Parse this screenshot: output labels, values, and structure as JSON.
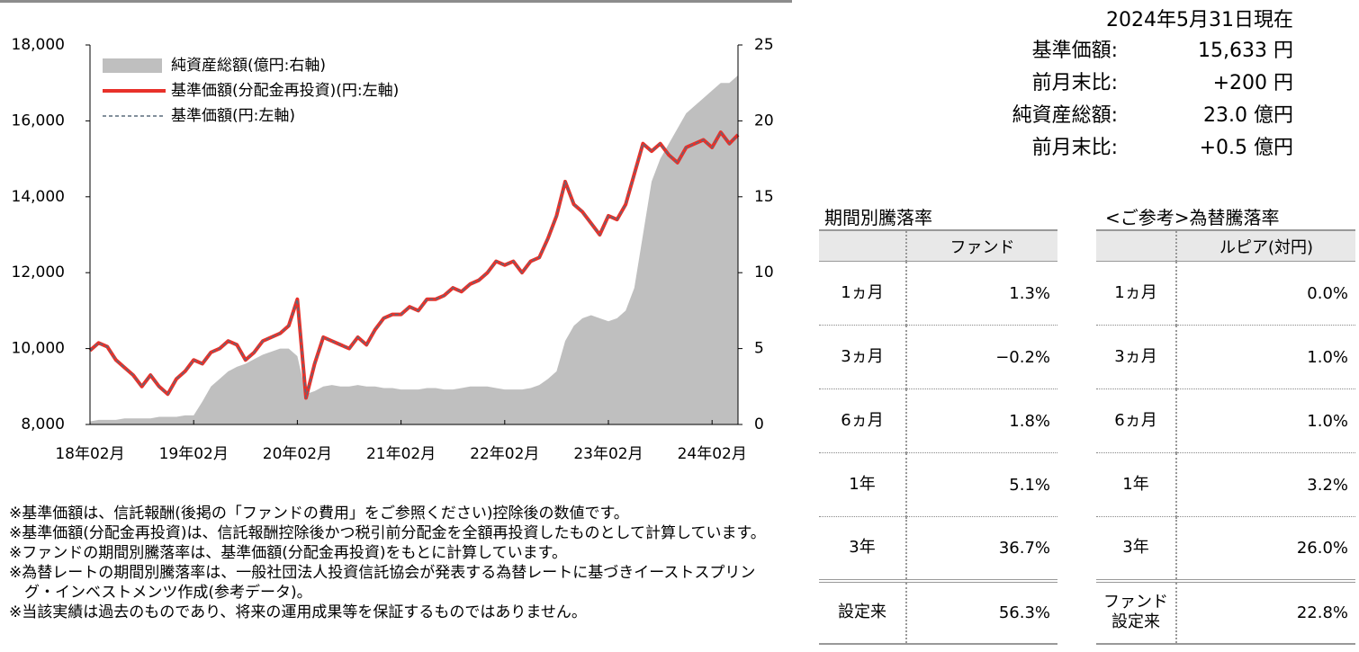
{
  "chart_data": {
    "type": "line",
    "categories": [
      "18年02月",
      null,
      null,
      null,
      null,
      null,
      null,
      null,
      null,
      null,
      null,
      null,
      "19年02月",
      null,
      null,
      null,
      null,
      null,
      null,
      null,
      null,
      null,
      null,
      null,
      "20年02月",
      null,
      null,
      null,
      null,
      null,
      null,
      null,
      null,
      null,
      null,
      null,
      "21年02月",
      null,
      null,
      null,
      null,
      null,
      null,
      null,
      null,
      null,
      null,
      null,
      "22年02月",
      null,
      null,
      null,
      null,
      null,
      null,
      null,
      null,
      null,
      null,
      null,
      "23年02月",
      null,
      null,
      null,
      null,
      null,
      null,
      null,
      null,
      null,
      null,
      null,
      "24年02月",
      null,
      null,
      null
    ],
    "series": [
      {
        "name": "純資産総額(億円:右軸)",
        "type": "area",
        "axis": "y2",
        "color": "#bfbfbf",
        "values": [
          0.2,
          0.3,
          0.3,
          0.3,
          0.4,
          0.4,
          0.4,
          0.4,
          0.5,
          0.5,
          0.5,
          0.6,
          0.6,
          1.5,
          2.5,
          3.0,
          3.5,
          3.8,
          4.0,
          4.3,
          4.6,
          4.8,
          5.0,
          5.0,
          4.5,
          2.0,
          2.2,
          2.5,
          2.6,
          2.5,
          2.5,
          2.6,
          2.5,
          2.5,
          2.4,
          2.4,
          2.3,
          2.3,
          2.3,
          2.4,
          2.4,
          2.3,
          2.3,
          2.4,
          2.5,
          2.5,
          2.5,
          2.4,
          2.3,
          2.3,
          2.3,
          2.4,
          2.6,
          3.0,
          3.5,
          5.5,
          6.5,
          7.0,
          7.2,
          7.0,
          6.8,
          7.0,
          7.5,
          9.0,
          12.5,
          16.0,
          17.5,
          18.5,
          19.5,
          20.5,
          21.0,
          21.5,
          22.0,
          22.5,
          22.5,
          23.0
        ]
      },
      {
        "name": "基準価額(分配金再投資)(円:左軸)",
        "type": "line",
        "color": "#e8312a",
        "dash": false,
        "values": [
          9950,
          10150,
          10050,
          9700,
          9500,
          9300,
          9000,
          9300,
          9000,
          8800,
          9200,
          9400,
          9700,
          9600,
          9900,
          10000,
          10200,
          10100,
          9700,
          9900,
          10200,
          10300,
          10400,
          10600,
          11300,
          8700,
          9600,
          10300,
          10200,
          10100,
          10000,
          10300,
          10100,
          10500,
          10800,
          10900,
          10900,
          11100,
          11000,
          11300,
          11300,
          11400,
          11600,
          11500,
          11700,
          11800,
          12000,
          12300,
          12200,
          12300,
          12000,
          12300,
          12400,
          12900,
          13500,
          14400,
          13800,
          13600,
          13300,
          13000,
          13500,
          13400,
          13800,
          14600,
          15400,
          15200,
          15400,
          15100,
          14900,
          15300,
          15400,
          15500,
          15300,
          15700,
          15400,
          15633
        ]
      },
      {
        "name": "基準価額(円:左軸)",
        "type": "line",
        "color": "#5a6b7b",
        "dash": true,
        "values": [
          9950,
          10150,
          10050,
          9700,
          9500,
          9300,
          9000,
          9300,
          9000,
          8800,
          9200,
          9400,
          9700,
          9600,
          9900,
          10000,
          10200,
          10100,
          9700,
          9900,
          10200,
          10300,
          10400,
          10600,
          11300,
          8700,
          9600,
          10300,
          10200,
          10100,
          10000,
          10300,
          10100,
          10500,
          10800,
          10900,
          10900,
          11100,
          11000,
          11300,
          11300,
          11400,
          11600,
          11500,
          11700,
          11800,
          12000,
          12300,
          12200,
          12300,
          12000,
          12300,
          12400,
          12900,
          13500,
          14400,
          13800,
          13600,
          13300,
          13000,
          13500,
          13400,
          13800,
          14600,
          15400,
          15200,
          15400,
          15100,
          14900,
          15300,
          15400,
          15500,
          15300,
          15700,
          15400,
          15633
        ]
      }
    ],
    "ylim": [
      8000,
      18000
    ],
    "yticks": [
      {
        "value": 8000,
        "label": "8,000"
      },
      {
        "value": 10000,
        "label": "10,000"
      },
      {
        "value": 12000,
        "label": "12,000"
      },
      {
        "value": 14000,
        "label": "14,000"
      },
      {
        "value": 16000,
        "label": "16,000"
      },
      {
        "value": 18000,
        "label": "18,000"
      }
    ],
    "y2lim": [
      0,
      25
    ],
    "y2ticks": [
      0,
      5,
      10,
      15,
      20,
      25
    ],
    "grid": false,
    "legend": "upper left"
  },
  "summary": {
    "date": "2024年5月31日現在",
    "rows": [
      [
        "基準価額:",
        "15,633 円"
      ],
      [
        "前月末比:",
        "+200 円"
      ],
      [
        "純資産総額:",
        "23.0 億円"
      ],
      [
        "前月末比:",
        "+0.5 億円"
      ]
    ]
  },
  "tables": [
    {
      "title": "期間別騰落率",
      "header": "ファンド",
      "rows": [
        [
          "1ヵ月",
          "1.3%"
        ],
        [
          "3ヵ月",
          "−0.2%"
        ],
        [
          "6ヵ月",
          "1.8%"
        ],
        [
          "1年",
          "5.1%"
        ],
        [
          "3年",
          "36.7%"
        ],
        [
          "設定来",
          "56.3%"
        ]
      ]
    },
    {
      "title": "<ご参考>為替騰落率",
      "header": "ルピア(対円)",
      "rows": [
        [
          "1ヵ月",
          "0.0%"
        ],
        [
          "3ヵ月",
          "1.0%"
        ],
        [
          "6ヵ月",
          "1.0%"
        ],
        [
          "1年",
          "3.2%"
        ],
        [
          "3年",
          "26.0%"
        ],
        [
          "ファンド\n設定来",
          "22.8%"
        ]
      ]
    }
  ],
  "notes": [
    "※基準価額は、信託報酬(後掲の「ファンドの費用」をご参照ください)控除後の数値です。",
    "※基準価額(分配金再投資)は、信託報酬控除後かつ税引前分配金を全額再投資したものとして計算しています。",
    "※ファンドの期間別騰落率は、基準価額(分配金再投資)をもとに計算しています。",
    "※為替レートの期間別騰落率は、一般社団法人投資信託協会が発表する為替レートに基づきイーストスプリング・インベストメンツ作成(参考データ)。",
    "※当該実績は過去のものであり、将来の運用成果等を保証するものではありません。"
  ]
}
